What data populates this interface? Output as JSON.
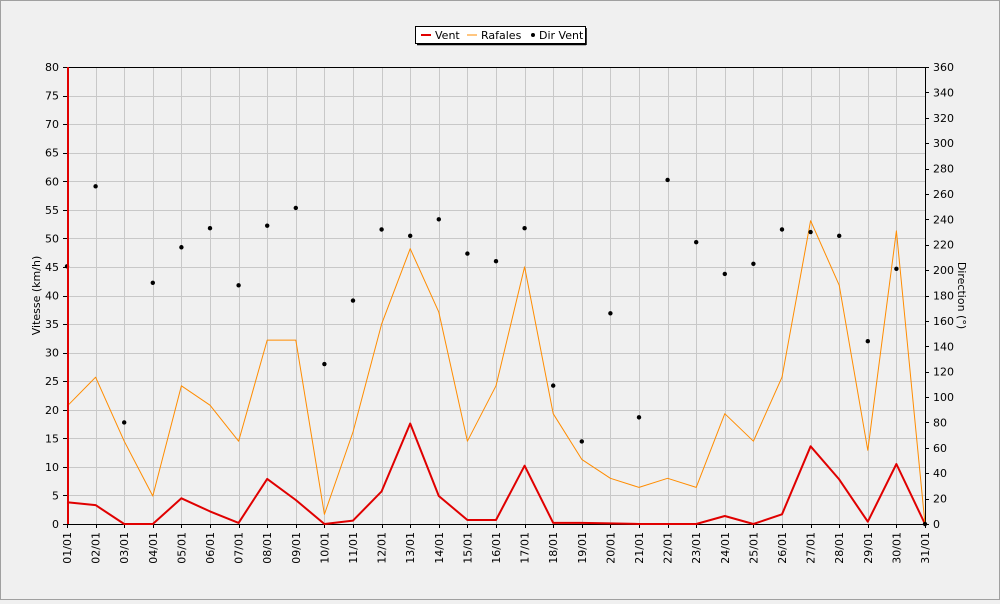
{
  "chart_data": {
    "type": "line",
    "categories": [
      "01/01",
      "02/01",
      "03/01",
      "04/01",
      "05/01",
      "06/01",
      "07/01",
      "08/01",
      "09/01",
      "10/01",
      "11/01",
      "12/01",
      "13/01",
      "14/01",
      "15/01",
      "16/01",
      "17/01",
      "18/01",
      "19/01",
      "20/01",
      "21/01",
      "22/01",
      "23/01",
      "24/01",
      "25/01",
      "26/01",
      "27/01",
      "28/01",
      "29/01",
      "30/01",
      "31/01"
    ],
    "series": [
      {
        "name": "Vent",
        "axis": "left",
        "color": "#e00000",
        "values": [
          3.8,
          3.3,
          0,
          0,
          4.5,
          2.2,
          0.2,
          7.9,
          4.2,
          0,
          0.6,
          5.7,
          17.6,
          4.9,
          0.7,
          0.7,
          10.2,
          0.2,
          0.2,
          0.1,
          0,
          0,
          0,
          1.4,
          0,
          1.7,
          13.6,
          7.8,
          0.4,
          10.5,
          0
        ]
      },
      {
        "name": "Rafales",
        "axis": "left",
        "color": "#ff8c00",
        "values": [
          20.6,
          25.7,
          14.5,
          4.9,
          24.2,
          20.8,
          14.5,
          32.2,
          32.2,
          1.7,
          16.1,
          35.0,
          48.2,
          37.1,
          14.5,
          24.2,
          45.0,
          19.3,
          11.3,
          8.0,
          6.4,
          8.0,
          6.4,
          19.3,
          14.5,
          25.7,
          53.1,
          41.8,
          12.9,
          51.3,
          0
        ]
      },
      {
        "name": "Dir Vent",
        "axis": "right",
        "color": "#000000",
        "style": "points",
        "values": [
          203,
          266,
          80,
          190,
          218,
          233,
          188,
          235,
          249,
          126,
          176,
          232,
          227,
          240,
          213,
          207,
          233,
          109,
          65,
          166,
          84,
          271,
          222,
          197,
          205,
          232,
          230,
          227,
          144,
          201,
          0
        ]
      }
    ],
    "ylabel": "Vitesse (km/h)",
    "y2label": "Direction (°)",
    "ylim": [
      0,
      80
    ],
    "yticks": [
      0,
      5,
      10,
      15,
      20,
      25,
      30,
      35,
      40,
      45,
      50,
      55,
      60,
      65,
      70,
      75,
      80
    ],
    "y2lim": [
      0,
      360
    ],
    "y2ticks": [
      0,
      20,
      40,
      60,
      80,
      100,
      120,
      140,
      160,
      180,
      200,
      220,
      240,
      260,
      280,
      300,
      320,
      340,
      360
    ],
    "grid": true,
    "legend": "top-center"
  }
}
